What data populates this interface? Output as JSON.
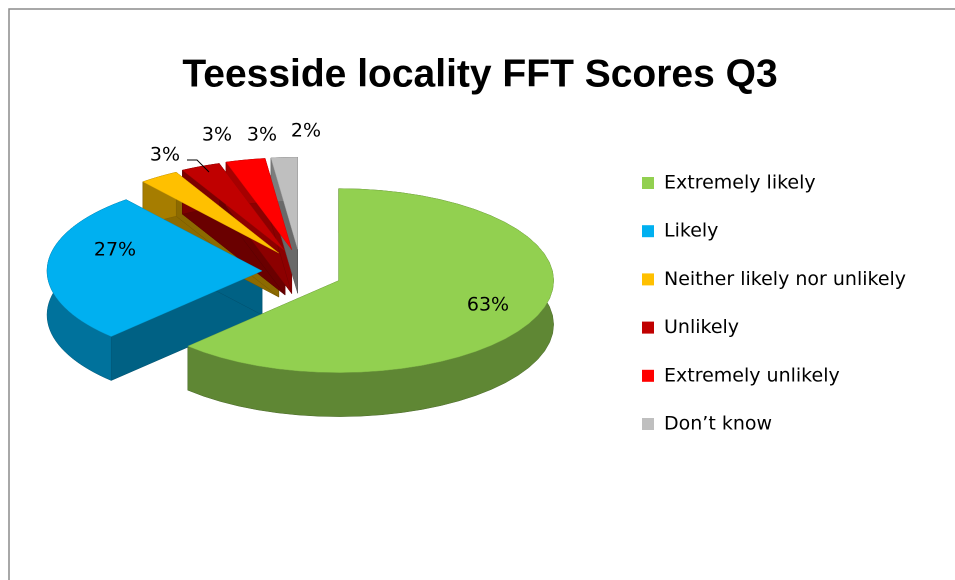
{
  "chart_data": {
    "type": "pie",
    "title": "Teesside locality FFT Scores Q3",
    "categories": [
      "Extremely likely",
      "Likely",
      "Neither likely nor unlikely",
      "Unlikely",
      "Extremely unlikely",
      "Don’t know"
    ],
    "values": [
      63,
      27,
      3,
      3,
      3,
      2
    ],
    "value_labels": [
      "63%",
      "27%",
      "3%",
      "3%",
      "3%",
      "2%"
    ],
    "colors": [
      "#92d050",
      "#00b0f0",
      "#ffc000",
      "#c00000",
      "#ff0000",
      "#bfbfbf"
    ],
    "legend": "right",
    "exploded": true,
    "3d": true
  }
}
